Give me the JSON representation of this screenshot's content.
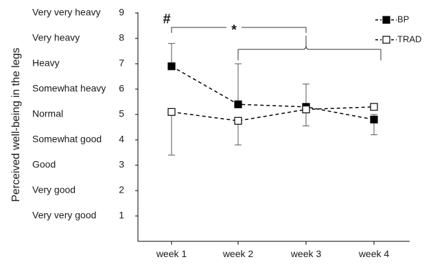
{
  "chart_data": {
    "type": "line",
    "ylabel": "Perceived well-being in the legs",
    "categories": [
      "week 1",
      "week 2",
      "week 3",
      "week 4"
    ],
    "ylim": [
      0,
      9
    ],
    "y_ticks": [
      {
        "value": 9,
        "label": "Very very heavy"
      },
      {
        "value": 8,
        "label": "Very heavy"
      },
      {
        "value": 7,
        "label": "Heavy"
      },
      {
        "value": 6,
        "label": "Somewhat heavy"
      },
      {
        "value": 5,
        "label": "Normal"
      },
      {
        "value": 4,
        "label": "Somewhat good"
      },
      {
        "value": 3,
        "label": "Good"
      },
      {
        "value": 2,
        "label": "Very good"
      },
      {
        "value": 1,
        "label": "Very very good"
      }
    ],
    "series": [
      {
        "name": "BP",
        "marker": "filled-square",
        "color": "#000000",
        "values": [
          6.9,
          5.4,
          5.3,
          4.8
        ],
        "error_upper": [
          7.8,
          7.0,
          6.2,
          5.0
        ],
        "error_lower": [
          6.9,
          5.4,
          5.3,
          4.2
        ]
      },
      {
        "name": "TRAD",
        "marker": "open-square",
        "color": "#000000",
        "values": [
          5.1,
          4.75,
          5.2,
          5.3
        ],
        "error_upper": [
          5.1,
          4.75,
          5.2,
          5.3
        ],
        "error_lower": [
          3.4,
          3.8,
          4.55,
          5.3
        ]
      }
    ],
    "legend_position": "top-right",
    "annotations": [
      {
        "text": "#",
        "near": "week 1"
      },
      {
        "text": "*",
        "spans": [
          "week 1",
          "week 2",
          "week 3",
          "week 4"
        ]
      }
    ],
    "grid": false
  }
}
